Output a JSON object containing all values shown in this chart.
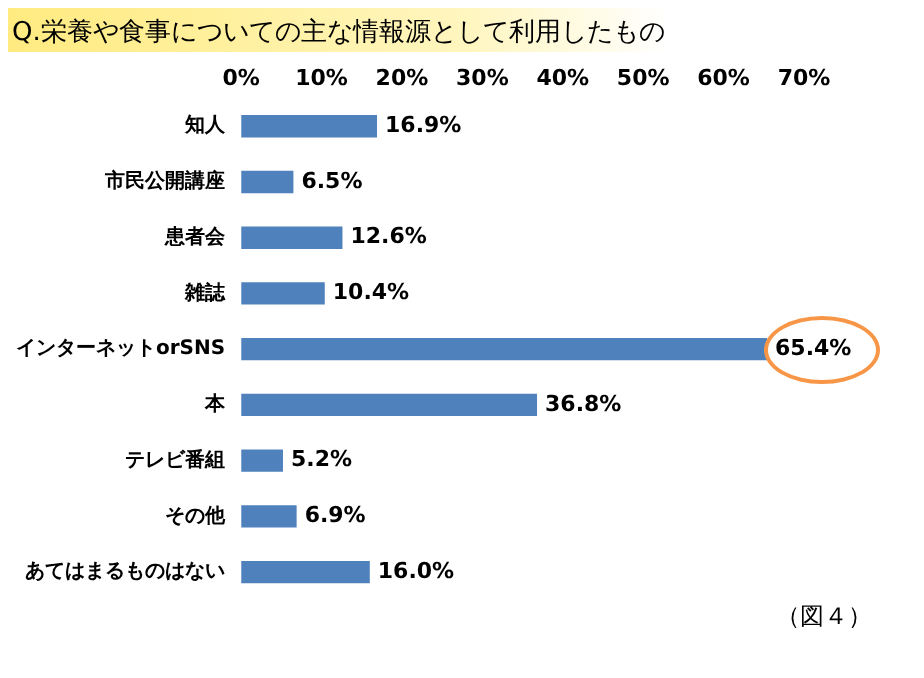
{
  "chart_data": {
    "type": "bar",
    "orientation": "horizontal",
    "title": "Q.栄養や食事についての主な情報源として利用したもの",
    "categories": [
      "知人",
      "市民公開講座",
      "患者会",
      "雑誌",
      "インターネットorSNS",
      "本",
      "テレビ番組",
      "その他",
      "あてはまるものはない"
    ],
    "values": [
      16.9,
      6.5,
      12.6,
      10.4,
      65.4,
      36.8,
      5.2,
      6.9,
      16.0
    ],
    "value_labels": [
      "16.9%",
      "6.5%",
      "12.6%",
      "10.4%",
      "65.4%",
      "36.8%",
      "5.2%",
      "6.9%",
      "16.0%"
    ],
    "color": "#4f81bd",
    "xlim": [
      0,
      70
    ],
    "xticks": [
      {
        "value": 0,
        "label": "0%"
      },
      {
        "value": 10,
        "label": "10%"
      },
      {
        "value": 20,
        "label": "20%"
      },
      {
        "value": 30,
        "label": "30%"
      },
      {
        "value": 40,
        "label": "40%"
      },
      {
        "value": 50,
        "label": "50%"
      },
      {
        "value": 60,
        "label": "60%"
      },
      {
        "value": 70,
        "label": "70%"
      }
    ],
    "grid": false,
    "legend": false,
    "annotations": [
      "（図４）"
    ]
  }
}
